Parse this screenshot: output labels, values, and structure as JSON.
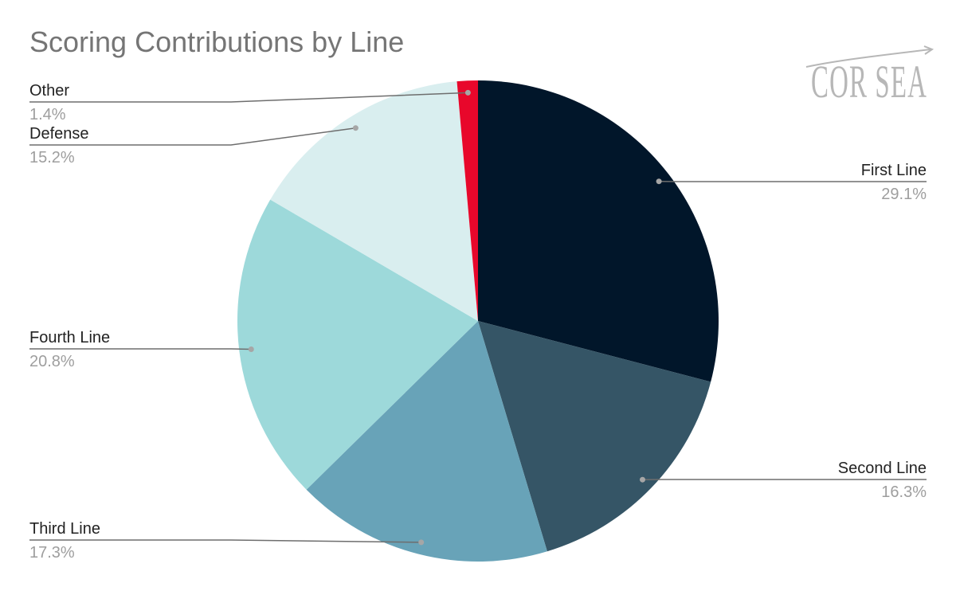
{
  "chart_data": {
    "type": "pie",
    "title": "Scoring Contributions by Line",
    "slices": [
      {
        "label": "First Line",
        "value": 29.1,
        "display": "29.1%",
        "color": "#01162a"
      },
      {
        "label": "Second Line",
        "value": 16.3,
        "display": "16.3%",
        "color": "#355566"
      },
      {
        "label": "Third Line",
        "value": 17.3,
        "display": "17.3%",
        "color": "#68a3b8"
      },
      {
        "label": "Fourth Line",
        "value": 20.8,
        "display": "20.8%",
        "color": "#9dd9da"
      },
      {
        "label": "Defense",
        "value": 15.2,
        "display": "15.2%",
        "color": "#d9eeef"
      },
      {
        "label": "Other",
        "value": 1.4,
        "display": "1.4%",
        "color": "#e8072b"
      }
    ],
    "start_angle": "12 o'clock",
    "direction": "clockwise",
    "legend": "none"
  },
  "logo": {
    "text": "COR SEA"
  },
  "colors": {
    "title": "#757575",
    "leader_line": "#6e6e6e",
    "label_name": "#222222",
    "label_value": "#9e9e9e"
  }
}
